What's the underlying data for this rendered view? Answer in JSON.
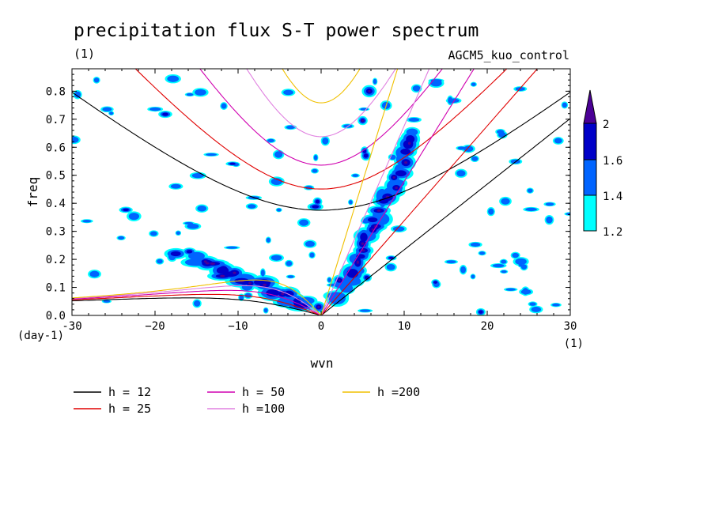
{
  "chart_data": {
    "type": "contour",
    "title": "precipitation flux S-T power spectrum",
    "subtitle_left": "(1)",
    "subtitle_right": "AGCM5_kuo_control",
    "xlabel": "wvn",
    "ylabel": "freq",
    "x_unit": "(1)",
    "y_unit": "(day-1)",
    "xlim": [
      -30,
      30
    ],
    "ylim": [
      0,
      0.88
    ],
    "xticks": [
      -30,
      -20,
      -10,
      0,
      10,
      20,
      30
    ],
    "xtick_labels": [
      "-30",
      "−20",
      "−10",
      "0",
      "10",
      "20",
      "30"
    ],
    "yticks": [
      0.0,
      0.1,
      0.2,
      0.3,
      0.4,
      0.5,
      0.6,
      0.7,
      0.8
    ],
    "ytick_labels": [
      "0.0",
      "0.1",
      "0.2",
      "0.3",
      "0.4",
      "0.5",
      "0.6",
      "0.7",
      "0.8"
    ],
    "colorbar": {
      "levels": [
        "1.2",
        "1.4",
        "1.6",
        "2"
      ],
      "colors": [
        "#00ffff",
        "#0064ff",
        "#0000c8",
        "#4b0096"
      ]
    },
    "dispersion_curves": [
      {
        "label": "h = 12",
        "h": 12,
        "color": "#000000"
      },
      {
        "label": "h = 25",
        "h": 25,
        "color": "#e00000"
      },
      {
        "label": "h = 50",
        "h": 50,
        "color": "#d000b0"
      },
      {
        "label": "h =100",
        "h": 100,
        "color": "#e080e0"
      },
      {
        "label": "h =200",
        "h": 200,
        "color": "#f0c000"
      }
    ],
    "features": [
      {
        "name": "kelvin-wave-band",
        "k_range": [
          2,
          12
        ],
        "freq_range": [
          0.05,
          0.65
        ],
        "max_level": 2
      },
      {
        "name": "mjo-cluster",
        "k_range": [
          -15,
          -2
        ],
        "freq_range": [
          0.03,
          0.2
        ],
        "max_level": 2
      },
      {
        "name": "scattered-noise",
        "level": 1.2
      }
    ]
  }
}
